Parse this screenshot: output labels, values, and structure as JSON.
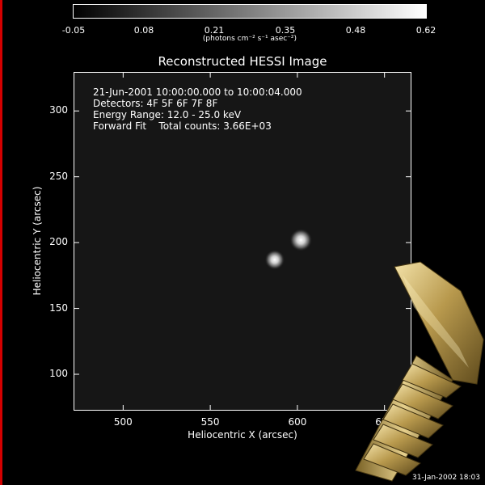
{
  "colors": {
    "left_edge": "#d40000",
    "background": "#000000",
    "plot_bg": "#161616",
    "axes": "#ffffff",
    "screw_gold": "#c9b06a"
  },
  "colorbar": {
    "ticks": [
      "-0.05",
      "0.08",
      "0.21",
      "0.35",
      "0.48",
      "0.62"
    ],
    "unit": "(photons cm⁻² s⁻¹ asec⁻²)",
    "range": [
      -0.05,
      0.62
    ],
    "colormap": "grayscale"
  },
  "plot": {
    "title": "Reconstructed HESSI Image",
    "info": [
      "21-Jun-2001 10:00:00.000 to 10:00:04.000",
      "Detectors: 4F 5F 6F 7F 8F",
      "Energy Range: 12.0 - 25.0 keV",
      "Forward Fit    Total counts: 3.66E+03"
    ],
    "xlabel": "Heliocentric X (arcsec)",
    "ylabel": "Heliocentric Y (arcsec)",
    "timestamp": "31-Jan-2002 18:03"
  },
  "chart_data": {
    "type": "heatmap",
    "title": "Reconstructed HESSI Image",
    "xlabel": "Heliocentric X (arcsec)",
    "ylabel": "Heliocentric Y (arcsec)",
    "xlim": [
      472,
      665
    ],
    "ylim": [
      73,
      329
    ],
    "xticks": [
      500,
      550,
      600,
      650
    ],
    "yticks": [
      100,
      150,
      200,
      250,
      300
    ],
    "grid": false,
    "sources": [
      {
        "x": 602,
        "y": 202,
        "intensity": 0.62
      },
      {
        "x": 587,
        "y": 187,
        "intensity": 0.55
      }
    ]
  },
  "icons": {
    "overlay": "screw-icon"
  }
}
